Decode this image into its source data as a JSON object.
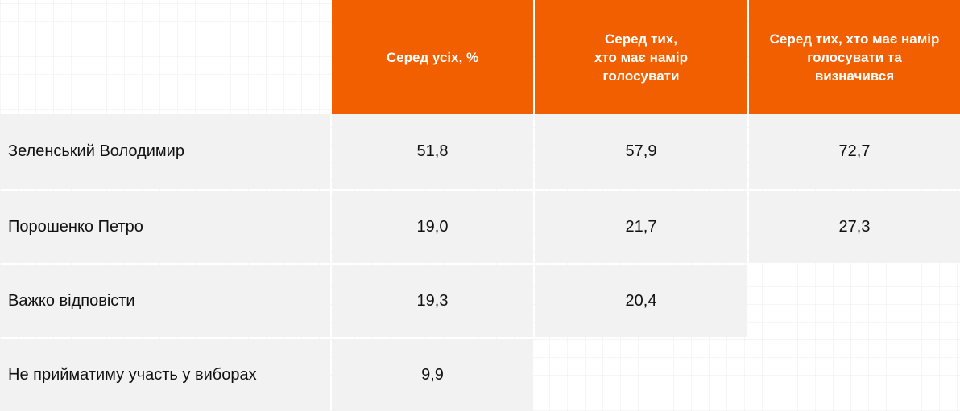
{
  "table": {
    "headers": [
      "Серед усіх, %",
      "Серед тих,\nхто має намір\nголосувати",
      "Серед тих, хто має намір\nголосувати та\nвизначився"
    ],
    "rows": [
      [
        "Зеленський Володимир",
        "51,8",
        "57,9",
        "72,7"
      ],
      [
        "Порошенко Петро",
        "19,0",
        "21,7",
        "27,3"
      ],
      [
        "Важко відповісти",
        "19,3",
        "20,4"
      ],
      [
        "Не прийматиму участь у виборах",
        "9,9"
      ]
    ]
  }
}
